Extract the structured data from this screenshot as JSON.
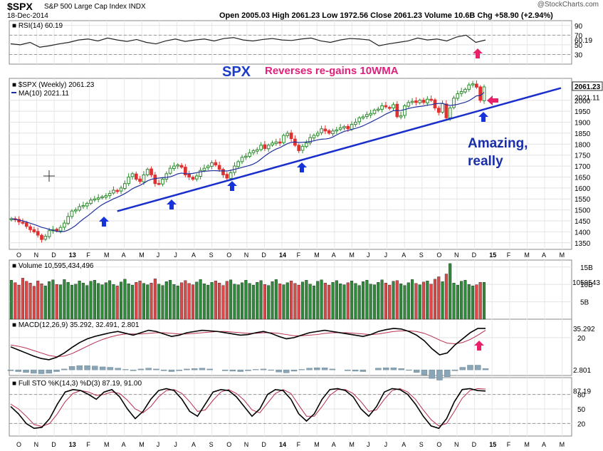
{
  "header": {
    "ticker": "$SPX",
    "name": "S&P 500 Large Cap Index",
    "exchange": "INDX",
    "date": "18-Dec-2014",
    "ohlc": "Open 2005.03 High 2061.23 Low 1972.56 Close 2061.23 Volume 10.6B Chg +58.90 (+2.94%)",
    "watermark": "@StockCharts.com"
  },
  "annotations": {
    "title": "SPX",
    "subtitle": "Reverses re-gains 10WMA",
    "comment_line1": "Amazing,",
    "comment_line2": "really"
  },
  "x_axis_labels": [
    "O",
    "N",
    "D",
    "13",
    "F",
    "M",
    "A",
    "M",
    "J",
    "J",
    "A",
    "S",
    "O",
    "N",
    "D",
    "14",
    "F",
    "M",
    "A",
    "M",
    "J",
    "J",
    "A",
    "S",
    "O",
    "N",
    "D",
    "15",
    "F",
    "M",
    "A",
    "M"
  ],
  "colors": {
    "up": "#2e8b2e",
    "down": "#e03030",
    "ma": "#1f2f9a",
    "trend": "#1a2ecc",
    "arrow_blue": "#1533d8",
    "arrow_pink": "#e8206a",
    "macd_signal": "#b83050",
    "histogram": "#8aa6b6"
  },
  "chart_data": [
    {
      "type": "line",
      "title": "RSI(14) 60.19",
      "series": [
        {
          "name": "RSI(14)",
          "values": [
            52,
            50,
            55,
            45,
            48,
            52,
            55,
            60,
            62,
            58,
            64,
            60,
            57,
            61,
            55,
            52,
            58,
            62,
            57,
            60,
            62,
            58,
            63,
            65,
            60,
            58,
            61,
            63,
            60,
            59,
            62,
            64,
            58,
            55,
            60,
            63,
            62,
            60,
            48,
            52,
            55,
            58,
            64,
            60,
            62,
            58,
            66,
            70,
            55,
            60
          ]
        }
      ],
      "y_ticks": [
        90,
        70,
        50,
        30
      ],
      "current_value": 60.19,
      "ylim": [
        10,
        100
      ]
    },
    {
      "type": "candlestick",
      "title": "$SPX (Weekly) 2061.23",
      "legend": [
        "$SPX (Weekly) 2061.23",
        "MA(10) 2021.11"
      ],
      "series_name": "$SPX",
      "ma_label": "MA(10)",
      "y_ticks": [
        1350,
        1400,
        1450,
        1500,
        1550,
        1600,
        1650,
        1700,
        1750,
        1800,
        1850,
        1900,
        1950,
        2000
      ],
      "last_price": 2061.23,
      "ma_last": 2021.11,
      "ylim": [
        1320,
        2100
      ],
      "close": [
        1460,
        1455,
        1445,
        1440,
        1425,
        1410,
        1400,
        1385,
        1365,
        1380,
        1405,
        1410,
        1405,
        1420,
        1440,
        1470,
        1495,
        1500,
        1515,
        1520,
        1530,
        1545,
        1550,
        1555,
        1560,
        1565,
        1575,
        1590,
        1585,
        1600,
        1620,
        1650,
        1665,
        1640,
        1630,
        1660,
        1685,
        1660,
        1620,
        1620,
        1640,
        1665,
        1690,
        1700,
        1705,
        1695,
        1660,
        1650,
        1640,
        1655,
        1680,
        1690,
        1700,
        1715,
        1705,
        1685,
        1660,
        1645,
        1670,
        1700,
        1720,
        1740,
        1745,
        1760,
        1770,
        1775,
        1795,
        1780,
        1795,
        1805,
        1810,
        1805,
        1840,
        1850,
        1825,
        1795,
        1770,
        1790,
        1805,
        1830,
        1840,
        1850,
        1870,
        1860,
        1850,
        1860,
        1865,
        1875,
        1880,
        1870,
        1890,
        1900,
        1920,
        1925,
        1935,
        1940,
        1955,
        1960,
        1975,
        1970,
        1965,
        1980,
        1925,
        1930,
        1975,
        1990,
        1995,
        1990,
        2000,
        1990,
        2005,
        2000,
        1965,
        1945,
        1985,
        1920,
        1965,
        2010,
        2030,
        2040,
        2050,
        2070,
        2075,
        2060,
        2000,
        2061
      ]
    },
    {
      "type": "bar",
      "title": "Volume 10,595,434,496",
      "y_ticks_labels": [
        "15B",
        "10B",
        "5B"
      ],
      "y_ticks": [
        15,
        10,
        5
      ],
      "current_label": "1059543",
      "values": [
        11.2,
        10.5,
        9.8,
        11.8,
        10.9,
        10.4,
        9.5,
        11.0,
        10.2,
        9.6,
        10.8,
        11.3,
        10.0,
        9.9,
        11.4,
        10.6,
        9.8,
        10.1,
        11.0,
        10.4,
        9.7,
        10.9,
        11.2,
        10.3,
        9.9,
        10.5,
        11.1,
        10.0,
        9.6,
        10.7,
        11.5,
        10.2,
        9.8,
        10.6,
        11.0,
        10.3,
        9.9,
        10.4,
        11.6,
        10.1,
        9.7,
        10.8,
        11.2,
        10.0,
        9.6,
        10.5,
        11.1,
        10.3,
        9.9,
        10.7,
        11.4,
        10.2,
        9.8,
        10.6,
        11.0,
        10.4,
        9.7,
        10.9,
        11.3,
        10.1,
        9.9,
        10.5,
        11.2,
        10.3,
        9.8,
        10.6,
        11.1,
        10.0,
        9.7,
        10.8,
        11.4,
        10.2,
        9.9,
        10.5,
        11.0,
        10.3,
        9.8,
        10.7,
        11.2,
        10.1,
        9.6,
        10.9,
        11.3,
        10.4,
        9.8,
        10.6,
        11.1,
        10.2,
        9.9,
        10.5,
        11.0,
        10.3,
        9.7,
        10.8,
        11.2,
        10.1,
        9.9,
        10.6,
        11.3,
        10.4,
        9.8,
        10.9,
        11.1,
        10.2,
        9.7,
        10.5,
        11.4,
        10.3,
        9.9,
        10.7,
        11.0,
        10.1,
        11.5,
        12.2,
        10.8,
        13.0,
        16.0,
        10.4,
        9.8,
        10.9,
        11.2,
        10.0,
        9.6,
        9.9,
        10.6,
        10.6
      ],
      "ylim": [
        0,
        17
      ]
    },
    {
      "type": "line",
      "title": "MACD(12,26,9) 35.292, 32.491, 2.801",
      "series": [
        {
          "name": "MACD(12,26,9)",
          "values": [
            5,
            0,
            -5,
            -10,
            -14,
            -16,
            -12,
            -5,
            4,
            12,
            18,
            22,
            25,
            28,
            30,
            27,
            24,
            28,
            32,
            30,
            26,
            22,
            24,
            28,
            30,
            32,
            31,
            30,
            28,
            26,
            24,
            25,
            28,
            30,
            27,
            22,
            18,
            20,
            24,
            28,
            30,
            32,
            30,
            28,
            26,
            24,
            22,
            25,
            30,
            33,
            35,
            34,
            30,
            24,
            15,
            2,
            -8,
            -5,
            8,
            18,
            28,
            35,
            35
          ]
        },
        {
          "name": "Signal",
          "values": [
            8,
            6,
            3,
            -1,
            -5,
            -9,
            -11,
            -10,
            -6,
            0,
            6,
            12,
            17,
            21,
            24,
            26,
            26,
            26,
            27,
            28,
            28,
            27,
            26,
            26,
            27,
            28,
            29,
            30,
            30,
            29,
            28,
            27,
            27,
            28,
            28,
            27,
            25,
            23,
            23,
            24,
            25,
            27,
            28,
            28,
            28,
            27,
            26,
            25,
            26,
            28,
            30,
            31,
            31,
            30,
            27,
            22,
            16,
            11,
            10,
            12,
            17,
            24,
            32
          ]
        }
      ],
      "histogram": [
        -2,
        -4,
        -6,
        -8,
        -9,
        -8,
        -4,
        2,
        8,
        10,
        10,
        9,
        7,
        6,
        4,
        1,
        -2,
        2,
        4,
        2,
        -2,
        -4,
        -2,
        2,
        3,
        4,
        2,
        0,
        -2,
        -3,
        -4,
        -2,
        1,
        2,
        -1,
        -5,
        -7,
        -3,
        1,
        4,
        5,
        5,
        2,
        0,
        -2,
        -3,
        -4,
        0,
        4,
        5,
        5,
        3,
        -1,
        -6,
        -12,
        -20,
        -24,
        -16,
        -2,
        6,
        11,
        11,
        3
      ],
      "y_ticks": [
        20
      ],
      "current_labels": [
        "35.292",
        "2.801"
      ],
      "ylim": [
        -30,
        50
      ]
    },
    {
      "type": "line",
      "title": "Full STO %K(14,3) %D(3) 87.19, 91.00",
      "series": [
        {
          "name": "%K(14,3)",
          "values": [
            55,
            40,
            20,
            10,
            12,
            30,
            60,
            85,
            90,
            88,
            80,
            70,
            85,
            90,
            75,
            50,
            30,
            45,
            70,
            88,
            92,
            88,
            70,
            45,
            35,
            60,
            85,
            90,
            88,
            75,
            55,
            35,
            50,
            80,
            90,
            88,
            70,
            40,
            25,
            40,
            70,
            90,
            92,
            88,
            75,
            50,
            35,
            55,
            85,
            92,
            90,
            80,
            60,
            35,
            15,
            10,
            30,
            65,
            90,
            92,
            88,
            87
          ]
        },
        {
          "name": "%D(3)",
          "values": [
            60,
            50,
            35,
            18,
            14,
            20,
            40,
            65,
            82,
            88,
            85,
            78,
            80,
            85,
            82,
            68,
            50,
            42,
            55,
            75,
            88,
            90,
            82,
            65,
            45,
            48,
            68,
            85,
            90,
            82,
            68,
            48,
            42,
            62,
            82,
            90,
            82,
            58,
            35,
            35,
            55,
            78,
            90,
            90,
            82,
            65,
            45,
            48,
            70,
            88,
            92,
            85,
            70,
            48,
            28,
            15,
            20,
            45,
            72,
            88,
            92,
            91
          ]
        }
      ],
      "y_ticks": [
        80,
        50,
        20
      ],
      "current_value": 87.19,
      "ylim": [
        0,
        100
      ]
    }
  ]
}
